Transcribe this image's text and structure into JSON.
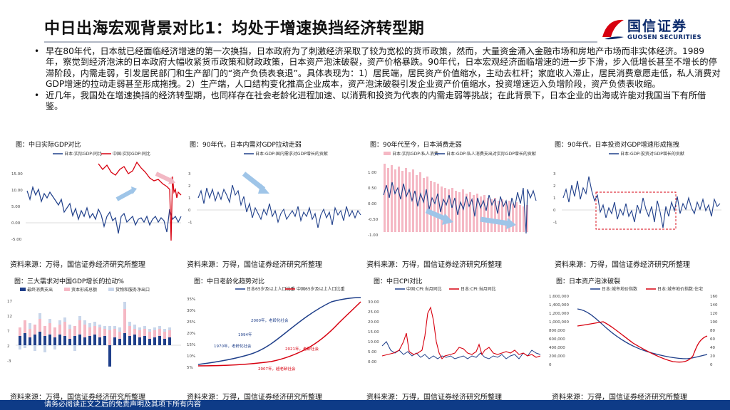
{
  "header": {
    "title": "中日出海宏观背景对比1：均处于增速换挡经济转型期",
    "logo_name": "国信证券",
    "logo_en": "GUOSEN SECURITIES"
  },
  "bullets": [
    "早在80年代，日本就已经面临经济增速的第一次换挡，日本政府为了刺激经济采取了较为宽松的货币政策，然而，大量资金涌入金融市场和房地产市场而非实体经济。1989年，察觉到经济泡沫的日本政府大幅收紧货币政策和财政政策，日本资产泡沫破裂，资产价格暴跌。90年代，日本宏观经济面临增速的进一步下滑，步入低增长甚至不增长的停滞阶段，内需走弱，引发居民部门和生产部门的“资产负债表衰退”。具体表现为：1）居民端，居民资产价值缩水，主动去杠杆；家庭收入滞止，居民消费意愿走低，私人消费对GDP增速的拉动走弱甚至形成拖拽。2）生产端，人口结构变化推高企业成本，资产泡沫破裂引发企业资产价值缩水，投资增速迈入负增阶段，资产负债表收缩。",
    "近几年，我国处在增速换挡的经济转型期，也同样存在社会老龄化进程加速、以消费和投资为代表的内需走弱等挑战；在此背景下，日本企业的出海或许能对我国当下有所借鉴。"
  ],
  "bullet_marker": "•",
  "charts": [
    {
      "caption": "图：中日实际GDP对比",
      "source": "资料来源：万得，国信证券经济研究所整理",
      "legend": [
        "日本:实际GDP:同比",
        "中国:实际GDP:同比"
      ],
      "yticks": [
        "15.00",
        "10.00",
        "5.00",
        "0.00",
        "-5.00",
        "-10.00"
      ]
    },
    {
      "caption": "图：90年代，日本内需对GDP拉动走弱",
      "source": "资料来源：万得，国信证券经济研究所整理",
      "legend": [
        "日本:GDP:国内需求对GDP增长的贡献"
      ],
      "yticks": [
        "3",
        "2",
        "1",
        "0",
        "-1",
        "-2",
        "-3"
      ]
    },
    {
      "caption": "图：90年代至今，日本消费走弱",
      "source": "资料来源：万得，国信证券经济研究所整理",
      "legend": [
        "日本:实际GDP:私人消费",
        "日本:GDP:私人消费支出对实际GDP增长的贡献"
      ],
      "yticks": [
        "1.00",
        "0.50",
        "0.00",
        "-0.50",
        "-1.00"
      ]
    },
    {
      "caption": "图：90年代，日本投资对GDP增速形成拖拽",
      "source": "资料来源：万得，国信证券经济研究所整理",
      "legend": [
        "日本:GDP:投资对GDP增长的贡献"
      ],
      "yticks": [
        "3",
        "2",
        "1",
        "0",
        "-1",
        "-2",
        "-3"
      ]
    },
    {
      "caption": "图：三大需求对中国GDP增长的拉动%",
      "source": "资料来源：万得，国信证券经济研究所整理",
      "legend": [
        "最终消费支出",
        "资本形成总额",
        "货物和服务净出口"
      ],
      "yticks": [
        "17",
        "12",
        "7",
        "2",
        "-3",
        "-8"
      ]
    },
    {
      "caption": "图：中日老龄化趋势对比",
      "source": "资料来源：万得，国信证券经济研究所整理",
      "legend": [
        "日本65岁及以上人口比重",
        "中国65岁及以上人口比重"
      ],
      "yticks": [
        "35%",
        "30%",
        "25%",
        "20%",
        "15%",
        "10%",
        "5%",
        "0%"
      ],
      "annotations": [
        "2000年，老龄化社会",
        "2021年，老龄社会",
        "1970年，老龄化社会",
        "1994年",
        "2007年，超老龄社会"
      ]
    },
    {
      "caption": "图：中日CPI对比",
      "source": "资料来源：万得，国信证券经济研究所整理",
      "legend": [
        "中国:CPI:当月同比",
        "日本:CPI:当月同比"
      ],
      "yticks": [
        "30.00",
        "25.00",
        "20.00",
        "15.00",
        "10.00",
        "5.00",
        "0.00",
        "-5.00"
      ]
    },
    {
      "caption": "图：日本资产泡沫破裂",
      "source": "资料来源：万得，国信证券经济研究所整理",
      "legend": [
        "日本:城市地价指数",
        "日本:城市地价指数:住宅"
      ],
      "yticks": [
        "1,600,000",
        "1,400,000",
        "1,200,000",
        "1,000,000",
        "800,000",
        "600,000",
        "400,000",
        "200,000",
        "0"
      ],
      "yticks_right": [
        "160",
        "140",
        "120",
        "100",
        "80",
        "60",
        "40",
        "20",
        "0"
      ]
    }
  ],
  "footer": {
    "text": "请务必阅读正文之后的免责声明及其项下所有内容"
  },
  "colors": {
    "footer": "#0e3b87",
    "brand_red": "#d7000f",
    "series_blue": "#1f3f8a",
    "series_red": "#d7000f",
    "arrow": "#9fc5e8",
    "bar_pink": "#f5b8c4",
    "bar_blue": "#1f3f8a",
    "bar_light": "#c9d6ea",
    "dashed_box": "#d7000f"
  },
  "icons": {
    "logo": "guosen-logo-icon",
    "arrow": "trend-arrow-icon"
  }
}
